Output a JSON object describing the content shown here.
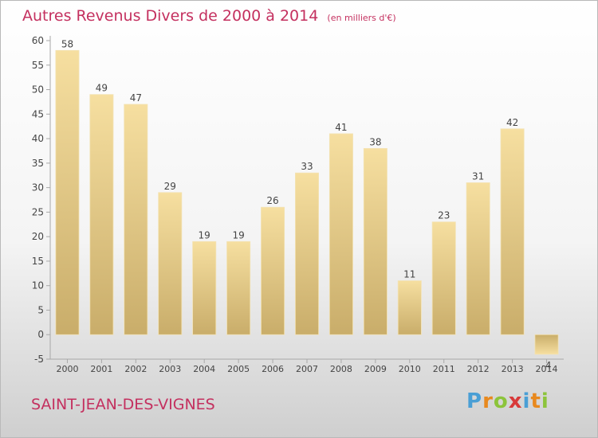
{
  "title": "Autres Revenus Divers de 2000 à 2014",
  "subtitle": "(en milliers d'€)",
  "location": "SAINT-JEAN-DES-VIGNES",
  "brand": "Proxiti",
  "colors": {
    "title": "#c4305f",
    "bar_light": "#f6dfa0",
    "bar_dark": "#c9ad6a",
    "axis": "#a8a8a8"
  },
  "chart_data": {
    "type": "bar",
    "title": "Autres Revenus Divers de 2000 à 2014",
    "subtitle": "(en milliers d'€)",
    "categories": [
      "2000",
      "2001",
      "2002",
      "2003",
      "2004",
      "2005",
      "2006",
      "2007",
      "2008",
      "2009",
      "2010",
      "2011",
      "2012",
      "2013",
      "2014"
    ],
    "values": [
      58,
      49,
      47,
      29,
      19,
      19,
      26,
      33,
      41,
      38,
      11,
      23,
      31,
      42,
      -4
    ],
    "ylim": [
      -5,
      60
    ],
    "yticks": [
      -5,
      0,
      5,
      10,
      15,
      20,
      25,
      30,
      35,
      40,
      45,
      50,
      55,
      60
    ],
    "grid": false,
    "xlabel": "",
    "ylabel": ""
  }
}
